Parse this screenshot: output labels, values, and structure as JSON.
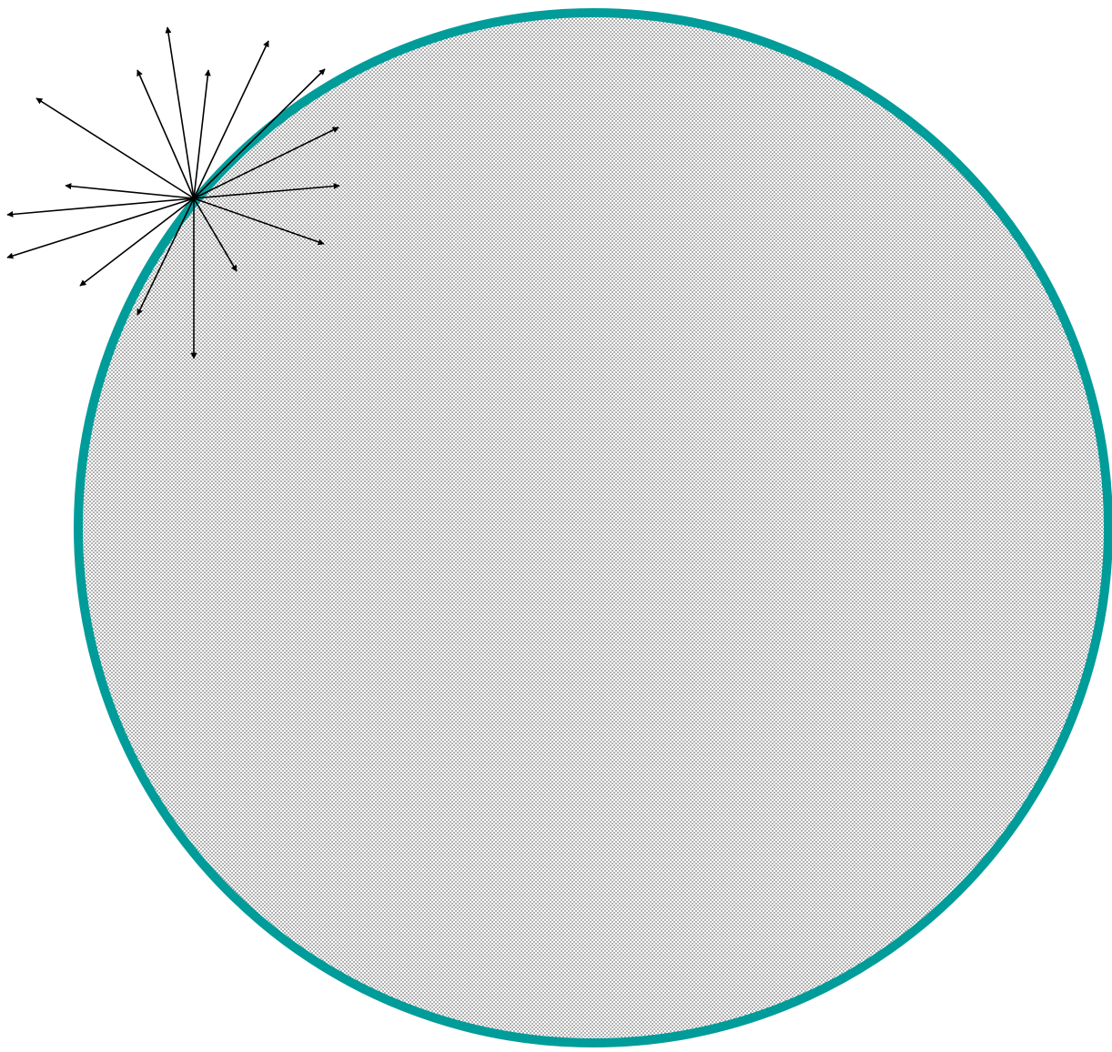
{
  "diagram": {
    "type": "sphere-with-radiating-vectors",
    "colors": {
      "circle_stroke": "#009C9A",
      "fill_dots": "#7a7a7a",
      "fill_background": "#ffffff",
      "arrow": "#000000"
    },
    "fill_pattern": "dotted",
    "arrow_count": 17,
    "arrow_shape": "filled-triangle-head",
    "arrow_origin": "point-on-circle-upper-left"
  }
}
